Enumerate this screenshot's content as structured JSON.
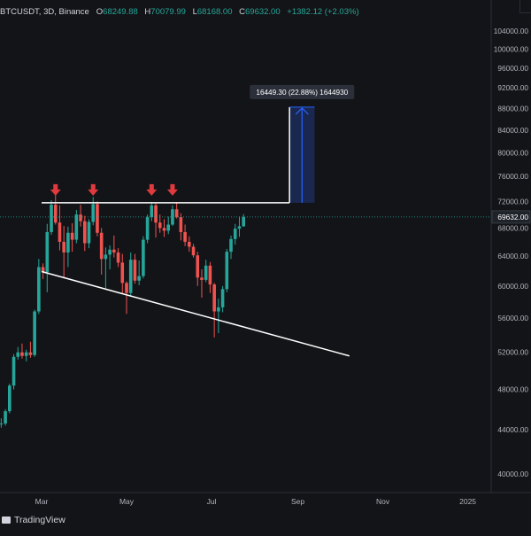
{
  "header": {
    "symbol": "BTCUSDT, 3D, Binance",
    "open_label": "O",
    "open": "68249.88",
    "high_label": "H",
    "high": "70079.99",
    "low_label": "L",
    "low": "68168.00",
    "close_label": "C",
    "close": "69632.00",
    "change": "+1382.12 (+2.03%)"
  },
  "branding": {
    "logo_text": "TradingView"
  },
  "colors": {
    "background": "#131417",
    "up": "#26a69a",
    "down": "#ef5350",
    "arrow": "#e03a3e",
    "measure_fill": "#1c2b5a",
    "measure_line": "#2962ff",
    "trendline": "#ffffff"
  },
  "chart_data": {
    "type": "candlestick",
    "symbol": "BTCUSDT",
    "interval": "3D",
    "exchange": "Binance",
    "y_range": [
      37000,
      108000
    ],
    "y_ticks": [
      40000,
      44000,
      48000,
      52000,
      56000,
      60000,
      64000,
      68000,
      72000,
      76000,
      80000,
      84000,
      88000,
      92000,
      96000,
      100000,
      104000
    ],
    "y_tick_labels": [
      "40000.00",
      "44000.00",
      "48000.00",
      "52000.00",
      "56000.00",
      "60000.00",
      "64000.00",
      "68000.00",
      "72000.00",
      "76000.00",
      "80000.00",
      "84000.00",
      "88000.00",
      "92000.00",
      "96000.00",
      "100000.00",
      "104000.00"
    ],
    "x_ticks": [
      "2024-03-01",
      "2024-05-01",
      "2024-07-01",
      "2024-09-01",
      "2024-11-01",
      "2025-01-01"
    ],
    "x_tick_labels": [
      "Mar",
      "May",
      "Jul",
      "Sep",
      "Nov",
      "2025"
    ],
    "current_price": 69632.0,
    "current_price_label": "69632.00",
    "candles": [
      {
        "date": "2024-01-23",
        "open": 43300,
        "high": 43800,
        "low": 42200,
        "close": 43000
      },
      {
        "date": "2024-01-26",
        "open": 43000,
        "high": 44300,
        "low": 42600,
        "close": 43300
      },
      {
        "date": "2024-01-29",
        "open": 43300,
        "high": 44800,
        "low": 43100,
        "close": 44600
      },
      {
        "date": "2024-02-01",
        "open": 44600,
        "high": 45100,
        "low": 44200,
        "close": 44600
      },
      {
        "date": "2024-02-04",
        "open": 44600,
        "high": 46000,
        "low": 44400,
        "close": 45800
      },
      {
        "date": "2024-02-07",
        "open": 45800,
        "high": 48600,
        "low": 45600,
        "close": 48400
      },
      {
        "date": "2024-02-10",
        "open": 48400,
        "high": 51800,
        "low": 48000,
        "close": 51500
      },
      {
        "date": "2024-02-13",
        "open": 51500,
        "high": 52600,
        "low": 51200,
        "close": 52000
      },
      {
        "date": "2024-02-16",
        "open": 52000,
        "high": 53000,
        "low": 51300,
        "close": 51600
      },
      {
        "date": "2024-02-19",
        "open": 51600,
        "high": 52300,
        "low": 51000,
        "close": 52000
      },
      {
        "date": "2024-02-22",
        "open": 52000,
        "high": 53200,
        "low": 51400,
        "close": 51700
      },
      {
        "date": "2024-02-25",
        "open": 51700,
        "high": 57000,
        "low": 51500,
        "close": 56800
      },
      {
        "date": "2024-02-28",
        "open": 56800,
        "high": 63600,
        "low": 56500,
        "close": 62500
      },
      {
        "date": "2024-03-02",
        "open": 62500,
        "high": 63000,
        "low": 60900,
        "close": 61800
      },
      {
        "date": "2024-03-05",
        "open": 61800,
        "high": 68600,
        "low": 59200,
        "close": 67400
      },
      {
        "date": "2024-03-08",
        "open": 67400,
        "high": 72200,
        "low": 67000,
        "close": 71500
      },
      {
        "date": "2024-03-11",
        "open": 71500,
        "high": 73700,
        "low": 68500,
        "close": 68800
      },
      {
        "date": "2024-03-14",
        "open": 68800,
        "high": 71400,
        "low": 64800,
        "close": 66000
      },
      {
        "date": "2024-03-17",
        "open": 66000,
        "high": 68300,
        "low": 61000,
        "close": 64500
      },
      {
        "date": "2024-03-20",
        "open": 64500,
        "high": 68200,
        "low": 62500,
        "close": 67300
      },
      {
        "date": "2024-03-23",
        "open": 67300,
        "high": 68700,
        "low": 64600,
        "close": 66300
      },
      {
        "date": "2024-03-26",
        "open": 66300,
        "high": 70700,
        "low": 65800,
        "close": 70000
      },
      {
        "date": "2024-03-29",
        "open": 70000,
        "high": 71500,
        "low": 68200,
        "close": 69000
      },
      {
        "date": "2024-04-01",
        "open": 69000,
        "high": 69800,
        "low": 64700,
        "close": 65800
      },
      {
        "date": "2024-04-04",
        "open": 65800,
        "high": 69300,
        "low": 65100,
        "close": 68900
      },
      {
        "date": "2024-04-07",
        "open": 68900,
        "high": 72700,
        "low": 68400,
        "close": 71600
      },
      {
        "date": "2024-04-10",
        "open": 71600,
        "high": 72000,
        "low": 66800,
        "close": 67300
      },
      {
        "date": "2024-04-13",
        "open": 67300,
        "high": 68000,
        "low": 61500,
        "close": 63600
      },
      {
        "date": "2024-04-16",
        "open": 63600,
        "high": 65200,
        "low": 59700,
        "close": 64200
      },
      {
        "date": "2024-04-19",
        "open": 64200,
        "high": 65500,
        "low": 62200,
        "close": 64900
      },
      {
        "date": "2024-04-22",
        "open": 64900,
        "high": 66900,
        "low": 63800,
        "close": 64500
      },
      {
        "date": "2024-04-25",
        "open": 64500,
        "high": 65100,
        "low": 62500,
        "close": 63100
      },
      {
        "date": "2024-04-28",
        "open": 63100,
        "high": 64300,
        "low": 59000,
        "close": 60400
      },
      {
        "date": "2024-05-01",
        "open": 60400,
        "high": 60600,
        "low": 56500,
        "close": 59100
      },
      {
        "date": "2024-05-04",
        "open": 59100,
        "high": 64500,
        "low": 58800,
        "close": 63500
      },
      {
        "date": "2024-05-07",
        "open": 63500,
        "high": 64300,
        "low": 60300,
        "close": 60700
      },
      {
        "date": "2024-05-10",
        "open": 60700,
        "high": 63400,
        "low": 60100,
        "close": 61300
      },
      {
        "date": "2024-05-13",
        "open": 61300,
        "high": 66800,
        "low": 61000,
        "close": 66300
      },
      {
        "date": "2024-05-16",
        "open": 66300,
        "high": 70000,
        "low": 65800,
        "close": 69600
      },
      {
        "date": "2024-05-19",
        "open": 69600,
        "high": 71900,
        "low": 69000,
        "close": 71400
      },
      {
        "date": "2024-05-22",
        "open": 71400,
        "high": 71800,
        "low": 66600,
        "close": 68800
      },
      {
        "date": "2024-05-25",
        "open": 68800,
        "high": 70000,
        "low": 67300,
        "close": 68000
      },
      {
        "date": "2024-05-28",
        "open": 68000,
        "high": 69300,
        "low": 66700,
        "close": 67600
      },
      {
        "date": "2024-05-31",
        "open": 67600,
        "high": 69700,
        "low": 67100,
        "close": 68500
      },
      {
        "date": "2024-06-03",
        "open": 68500,
        "high": 71400,
        "low": 68300,
        "close": 70800
      },
      {
        "date": "2024-06-06",
        "open": 70800,
        "high": 71900,
        "low": 69400,
        "close": 69600
      },
      {
        "date": "2024-06-09",
        "open": 69600,
        "high": 70200,
        "low": 66200,
        "close": 67400
      },
      {
        "date": "2024-06-12",
        "open": 67400,
        "high": 68500,
        "low": 65400,
        "close": 66000
      },
      {
        "date": "2024-06-15",
        "open": 66000,
        "high": 66800,
        "low": 64600,
        "close": 65300
      },
      {
        "date": "2024-06-18",
        "open": 65300,
        "high": 65700,
        "low": 63800,
        "close": 64100
      },
      {
        "date": "2024-06-21",
        "open": 64100,
        "high": 64600,
        "low": 60000,
        "close": 61100
      },
      {
        "date": "2024-06-24",
        "open": 61100,
        "high": 62200,
        "low": 58500,
        "close": 60800
      },
      {
        "date": "2024-06-27",
        "open": 60800,
        "high": 63500,
        "low": 60500,
        "close": 62700
      },
      {
        "date": "2024-06-30",
        "open": 62700,
        "high": 63200,
        "low": 59100,
        "close": 60200
      },
      {
        "date": "2024-07-03",
        "open": 60200,
        "high": 60400,
        "low": 53700,
        "close": 56800
      },
      {
        "date": "2024-07-06",
        "open": 56800,
        "high": 58400,
        "low": 54200,
        "close": 57300
      },
      {
        "date": "2024-07-09",
        "open": 57300,
        "high": 60000,
        "low": 56700,
        "close": 59600
      },
      {
        "date": "2024-07-12",
        "open": 59600,
        "high": 65000,
        "low": 59200,
        "close": 64600
      },
      {
        "date": "2024-07-15",
        "open": 64600,
        "high": 66900,
        "low": 63600,
        "close": 66400
      },
      {
        "date": "2024-07-18",
        "open": 66400,
        "high": 68600,
        "low": 65600,
        "close": 67900
      },
      {
        "date": "2024-07-21",
        "open": 67900,
        "high": 69700,
        "low": 66700,
        "close": 68250
      },
      {
        "date": "2024-07-24",
        "open": 68250,
        "high": 70080,
        "low": 68168,
        "close": 69632
      }
    ],
    "drawings": {
      "resistance_line": {
        "price": 71800,
        "from": "2024-03-01",
        "to": "2024-08-26"
      },
      "support_trendline": {
        "from": {
          "date": "2024-03-01",
          "price": 61900
        },
        "to": {
          "date": "2024-10-08",
          "price": 51600
        }
      },
      "price_range": {
        "from_price": 71800,
        "to_price": 88250,
        "from_date": "2024-08-26",
        "to_date": "2024-09-13",
        "label": "16449.30 (22.88%) 1644930"
      },
      "resistance_touches": [
        "2024-03-11",
        "2024-04-07",
        "2024-05-19",
        "2024-06-03"
      ]
    }
  }
}
